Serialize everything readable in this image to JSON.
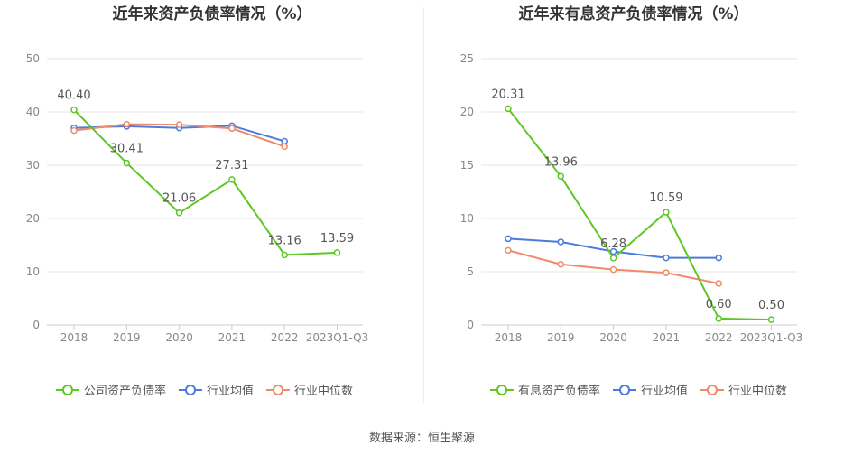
{
  "source_text": "数据来源：恒生聚源",
  "colors": {
    "green": "#5dc823",
    "blue": "#4d7bdb",
    "orange": "#f08a6a",
    "grid": "#e6e6e6",
    "axis_text": "#888888",
    "label_text": "#555555"
  },
  "chart_data": [
    {
      "type": "line",
      "title": "近年来资产负债率情况（%）",
      "categories": [
        "2018",
        "2019",
        "2020",
        "2021",
        "2022",
        "2023Q1-Q3"
      ],
      "ylim": [
        0,
        50
      ],
      "yticks": [
        0,
        10,
        20,
        30,
        40,
        50
      ],
      "xlabel": "",
      "ylabel": "",
      "legend_position": "bottom-center",
      "series": [
        {
          "name": "公司资产负债率",
          "color": "#5dc823",
          "values": [
            40.4,
            30.41,
            21.06,
            27.31,
            13.16,
            13.59
          ],
          "data_labels": [
            "40.40",
            "30.41",
            "21.06",
            "27.31",
            "13.16",
            "13.59"
          ]
        },
        {
          "name": "行业均值",
          "color": "#4d7bdb",
          "values": [
            37.0,
            37.3,
            37.0,
            37.4,
            34.5,
            null
          ]
        },
        {
          "name": "行业中位数",
          "color": "#f08a6a",
          "values": [
            36.5,
            37.7,
            37.6,
            36.9,
            33.5,
            null
          ]
        }
      ]
    },
    {
      "type": "line",
      "title": "近年来有息资产负债率情况（%）",
      "categories": [
        "2018",
        "2019",
        "2020",
        "2021",
        "2022",
        "2023Q1-Q3"
      ],
      "ylim": [
        0,
        25
      ],
      "yticks": [
        0,
        5,
        10,
        15,
        20,
        25
      ],
      "xlabel": "",
      "ylabel": "",
      "legend_position": "bottom-center",
      "series": [
        {
          "name": "有息资产负债率",
          "color": "#5dc823",
          "values": [
            20.31,
            13.96,
            6.28,
            10.59,
            0.6,
            0.5
          ],
          "data_labels": [
            "20.31",
            "13.96",
            "6.28",
            "10.59",
            "0.60",
            "0.50"
          ]
        },
        {
          "name": "行业均值",
          "color": "#4d7bdb",
          "values": [
            8.1,
            7.8,
            6.9,
            6.3,
            6.3,
            null
          ]
        },
        {
          "name": "行业中位数",
          "color": "#f08a6a",
          "values": [
            7.0,
            5.7,
            5.2,
            4.9,
            3.9,
            null
          ]
        }
      ]
    }
  ]
}
